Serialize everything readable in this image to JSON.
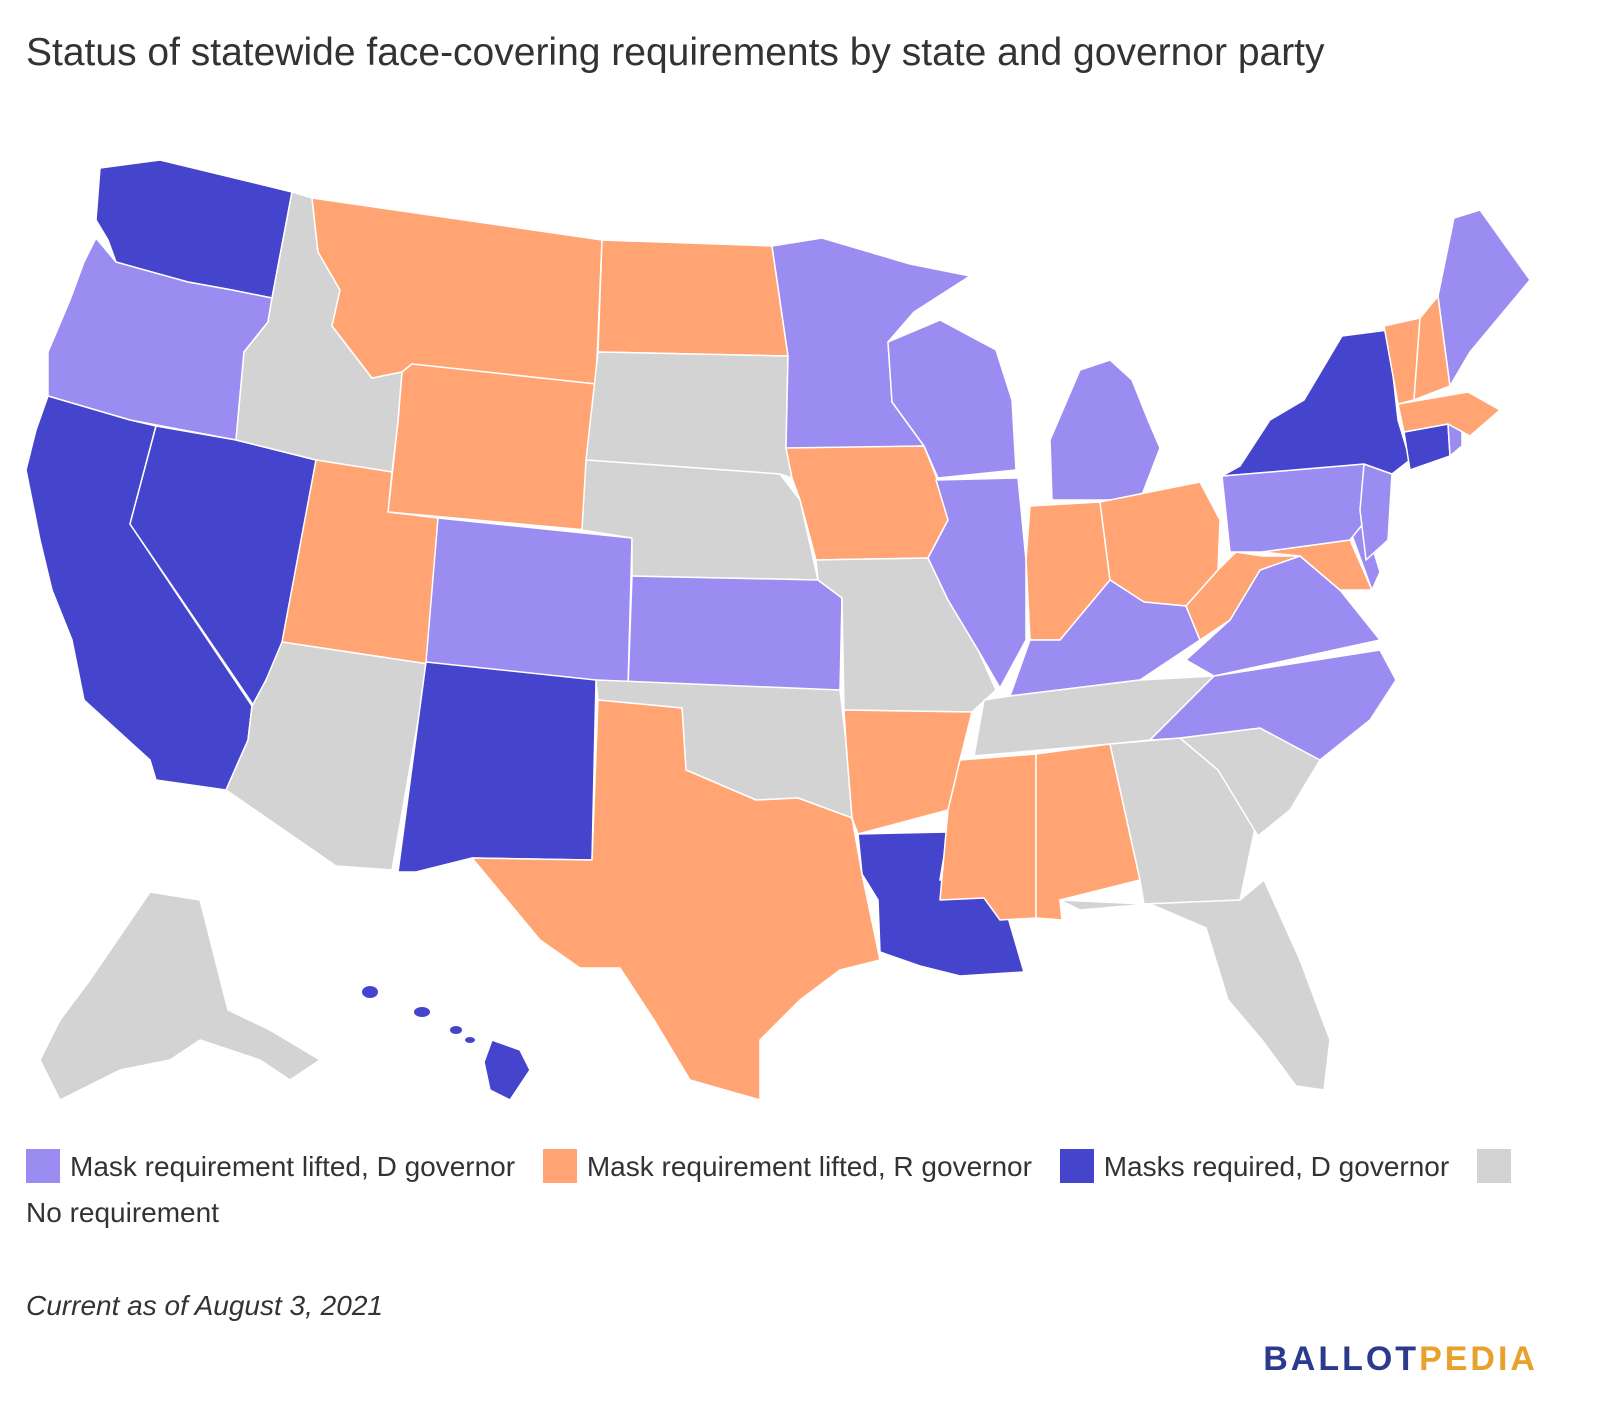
{
  "title": "Status of statewide face-covering requirements by state and governor party",
  "colors": {
    "lifted_d": "#9b8cf2",
    "lifted_r": "#ffa472",
    "required_d": "#4444cc",
    "none": "#d3d3d3"
  },
  "legend": [
    {
      "key": "lifted_d",
      "label": "Mask requirement lifted, D governor"
    },
    {
      "key": "lifted_r",
      "label": "Mask requirement lifted, R governor"
    },
    {
      "key": "required_d",
      "label": "Masks required, D governor"
    },
    {
      "key": "none",
      "label": "No requirement"
    }
  ],
  "states": {
    "WA": "required_d",
    "OR": "lifted_d",
    "CA": "required_d",
    "NV": "required_d",
    "ID": "none",
    "MT": "lifted_r",
    "WY": "lifted_r",
    "UT": "lifted_r",
    "AZ": "none",
    "CO": "lifted_d",
    "NM": "required_d",
    "ND": "lifted_r",
    "SD": "none",
    "NE": "none",
    "KS": "lifted_d",
    "OK": "none",
    "TX": "lifted_r",
    "MN": "lifted_d",
    "IA": "lifted_r",
    "MO": "none",
    "AR": "lifted_r",
    "LA": "required_d",
    "WI": "lifted_d",
    "IL": "lifted_d",
    "MI": "lifted_d",
    "IN": "lifted_r",
    "OH": "lifted_r",
    "KY": "lifted_d",
    "TN": "none",
    "MS": "lifted_r",
    "AL": "lifted_r",
    "GA": "none",
    "FL": "none",
    "SC": "none",
    "NC": "lifted_d",
    "VA": "lifted_d",
    "WV": "lifted_r",
    "MD": "lifted_r",
    "DE": "lifted_d",
    "PA": "lifted_d",
    "NJ": "lifted_d",
    "NY": "required_d",
    "CT": "required_d",
    "RI": "lifted_d",
    "MA": "lifted_r",
    "VT": "lifted_r",
    "NH": "lifted_r",
    "ME": "lifted_d",
    "AK": "none",
    "HI": "required_d"
  },
  "note": "Current as of August 3, 2021",
  "logo": {
    "part1": "BALLOT",
    "part2": "PEDIA"
  }
}
